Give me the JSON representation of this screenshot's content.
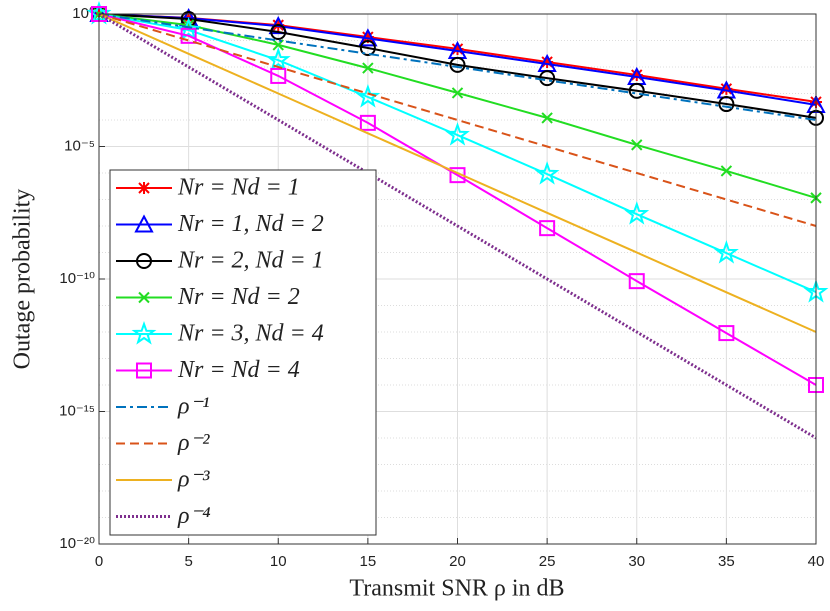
{
  "chart_data": {
    "type": "line",
    "x_label": "Transmit SNR ρ in dB",
    "y_label": "Outage probability",
    "log_y": true,
    "grid": true,
    "legend": "lower left",
    "x": [
      0,
      5,
      10,
      15,
      20,
      25,
      30,
      35,
      40
    ],
    "xlim": [
      0,
      40
    ],
    "xticks": [
      0,
      5,
      10,
      15,
      20,
      25,
      30,
      35,
      40
    ],
    "ylim": [
      1e-20,
      1
    ],
    "yticks": [
      {
        "value": 1e-20,
        "label": "10⁻²⁰"
      },
      {
        "value": 1e-15,
        "label": "10⁻¹⁵"
      },
      {
        "value": 1e-10,
        "label": "10⁻¹⁰"
      },
      {
        "value": 1e-05,
        "label": "10⁻⁵"
      },
      {
        "value": 1,
        "label": "10⁰"
      }
    ],
    "series": [
      {
        "name": "Nr = Nd = 1",
        "color": "#ff0000",
        "marker": "asterisk",
        "dash": "solid",
        "values": [
          1,
          0.71,
          0.38,
          0.135,
          0.048,
          0.0155,
          0.005,
          0.0015,
          0.00048
        ]
      },
      {
        "name": "Nr = 1, Nd = 2",
        "color": "#0000ff",
        "marker": "triangle",
        "dash": "solid",
        "values": [
          1,
          0.7,
          0.35,
          0.12,
          0.04,
          0.013,
          0.0042,
          0.0013,
          0.00037
        ]
      },
      {
        "name": "Nr = 2, Nd = 1",
        "color": "#000000",
        "marker": "circle",
        "dash": "solid",
        "values": [
          1,
          0.65,
          0.21,
          0.052,
          0.012,
          0.0038,
          0.00126,
          0.0004,
          0.00012
        ]
      },
      {
        "name": "Nr = Nd = 2",
        "color": "#22dd22",
        "marker": "x",
        "dash": "solid",
        "values": [
          1,
          0.38,
          0.068,
          0.0091,
          0.00105,
          0.00012,
          1.15e-05,
          1.2e-06,
          1.15e-07
        ]
      },
      {
        "name": "Nr = 3, Nd = 4",
        "color": "#00ffff",
        "marker": "star",
        "dash": "solid",
        "values": [
          1,
          0.25,
          0.018,
          0.00074,
          2.7e-05,
          9.1e-07,
          2.8e-08,
          9.5e-10,
          3.2e-11
        ]
      },
      {
        "name": "Nr = Nd = 4",
        "color": "#ff00ff",
        "marker": "square",
        "dash": "solid",
        "values": [
          1,
          0.15,
          0.0046,
          7.8e-05,
          8.3e-07,
          8.3e-09,
          8.3e-11,
          9.1e-13,
          1e-14
        ]
      },
      {
        "name": "ρ⁻¹",
        "color": "#0072bd",
        "marker": "none",
        "dash": "dashdot",
        "values": [
          1,
          0.316,
          0.1,
          0.0316,
          0.01,
          0.00316,
          0.001,
          0.000316,
          0.0001
        ]
      },
      {
        "name": "ρ⁻²",
        "color": "#d95319",
        "marker": "none",
        "dash": "dashed",
        "values": [
          1,
          0.1,
          0.01,
          0.001,
          0.0001,
          1e-05,
          1e-06,
          1e-07,
          1e-08
        ]
      },
      {
        "name": "ρ⁻³",
        "color": "#edb120",
        "marker": "none",
        "dash": "solid",
        "values": [
          1,
          0.0316,
          0.001,
          3.16e-05,
          1e-06,
          3.16e-08,
          1e-09,
          3.16e-11,
          1e-12
        ]
      },
      {
        "name": "ρ⁻⁴",
        "color": "#7e2f8e",
        "marker": "none",
        "dash": "dotted",
        "values": [
          1,
          0.01,
          0.0001,
          1e-06,
          1e-08,
          1e-10,
          1e-12,
          1e-14,
          1e-16
        ]
      }
    ]
  }
}
